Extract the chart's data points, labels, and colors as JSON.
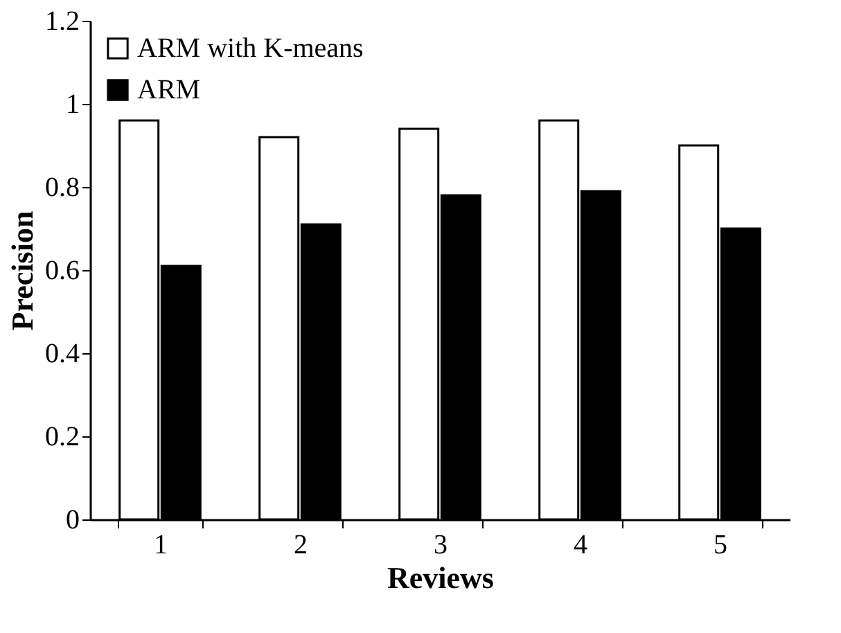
{
  "chart_data": {
    "type": "bar",
    "xlabel": "Reviews",
    "ylabel": "Precision",
    "categories": [
      "1",
      "2",
      "3",
      "4",
      "5"
    ],
    "series": [
      {
        "name": "ARM with K-means",
        "color": "#ffffff",
        "values": [
          0.96,
          0.92,
          0.94,
          0.96,
          0.9
        ]
      },
      {
        "name": "ARM",
        "color": "#000000",
        "values": [
          0.61,
          0.71,
          0.78,
          0.79,
          0.7
        ]
      }
    ],
    "ylim": [
      0,
      1.2
    ],
    "yticks": [
      0,
      0.2,
      0.4,
      0.6,
      0.8,
      1,
      1.2
    ],
    "grid": false,
    "legend": "top left"
  }
}
